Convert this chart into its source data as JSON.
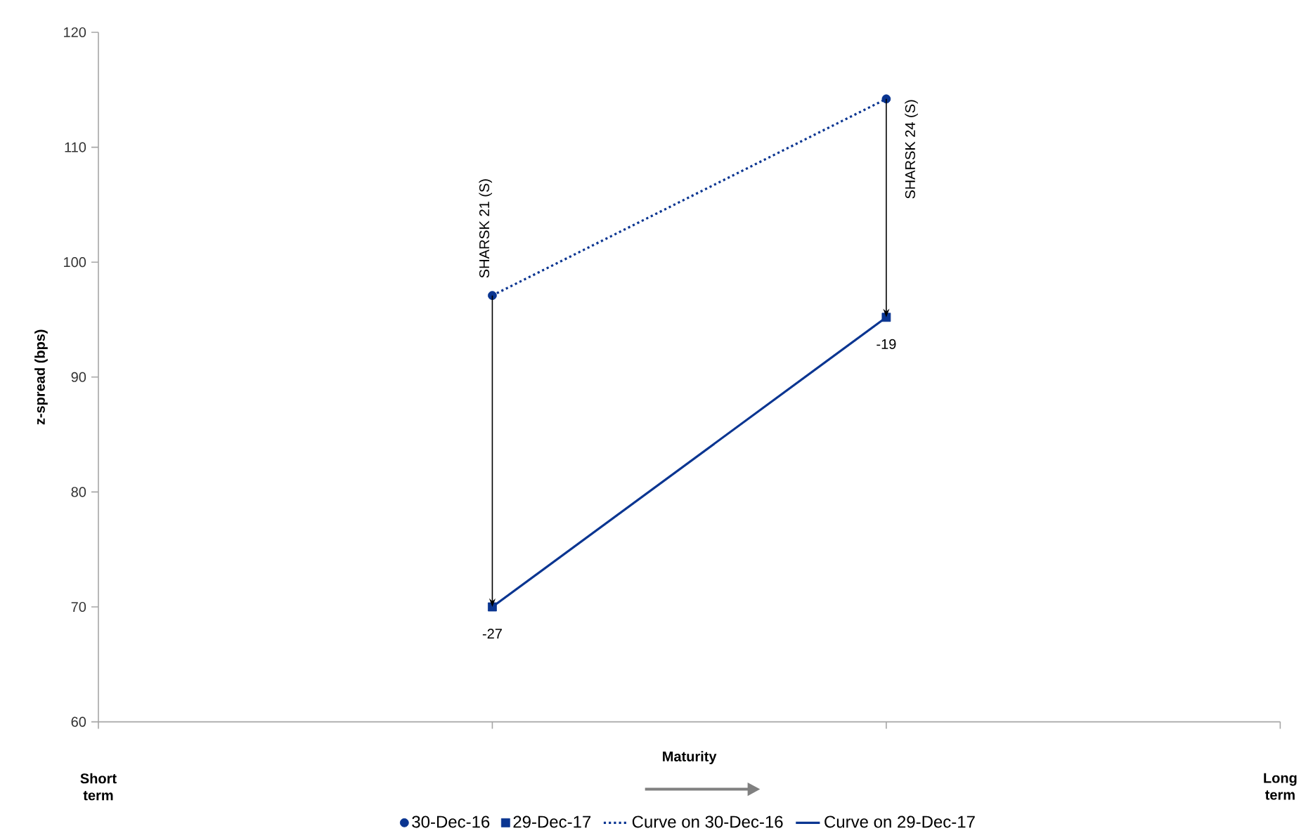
{
  "chart_data": {
    "type": "line",
    "ylabel": "z-spread (bps)",
    "xlabel": "Maturity",
    "categories": [
      "Short term",
      null,
      null,
      "Long term"
    ],
    "ylim": [
      60,
      120
    ],
    "yticks": [
      60,
      70,
      80,
      90,
      100,
      110,
      120
    ],
    "series": [
      {
        "name": "30-Dec-16",
        "type": "scatter",
        "marker": "circle",
        "color": "#0a3591",
        "values": [
          null,
          97.1,
          114.2,
          null
        ]
      },
      {
        "name": "29-Dec-17",
        "type": "scatter",
        "marker": "square",
        "color": "#0a3591",
        "values": [
          null,
          70.0,
          95.2,
          null
        ]
      },
      {
        "name": "Curve on 30-Dec-16",
        "line_style": "dotted",
        "color": "#0a3591",
        "values": [
          null,
          97.1,
          114.2,
          null
        ]
      },
      {
        "name": "Curve on 29-Dec-17",
        "line_style": "solid",
        "color": "#0a3591",
        "values": [
          null,
          70.0,
          95.2,
          null
        ]
      }
    ],
    "annotations": [
      {
        "text": "SHARSK 21 (S)",
        "y": 97.1
      },
      "SHARSK 24 (S)",
      {
        "text": "-27",
        "y": 70.0
      },
      {
        "text": "-19",
        "y": 95.2
      }
    ],
    "grid": false,
    "legend": "bottom"
  }
}
